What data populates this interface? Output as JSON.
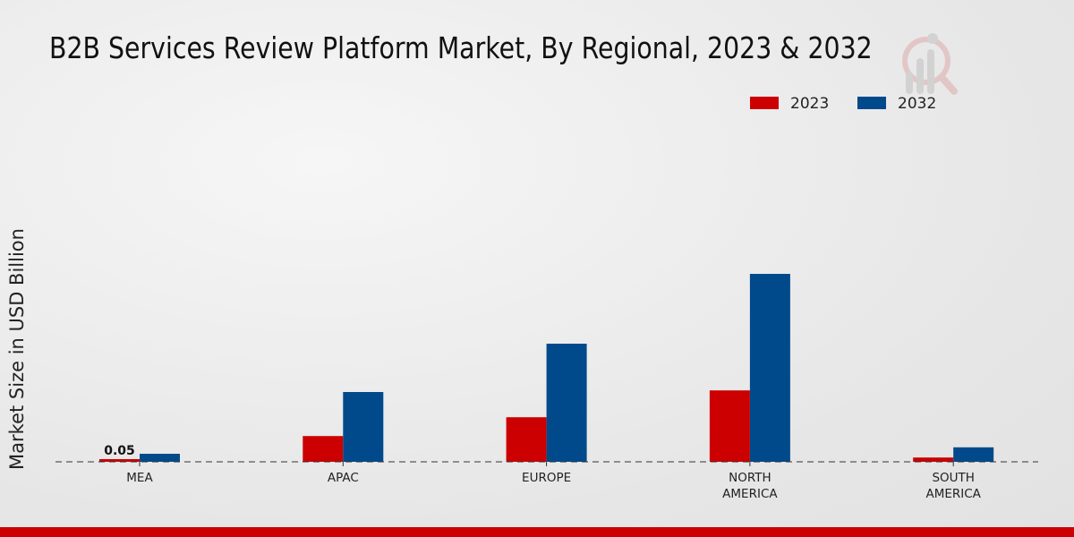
{
  "title": "B2B Services Review Platform Market, By Regional, 2023 & 2032",
  "chart_data": {
    "type": "bar",
    "title": "B2B Services Review Platform Market, By Regional, 2023 & 2032",
    "xlabel": "",
    "ylabel": "Market Size in USD Billion",
    "categories": [
      "MEA",
      "APAC",
      "EUROPE",
      "NORTH AMERICA",
      "SOUTH AMERICA"
    ],
    "category_lines": [
      [
        "MEA"
      ],
      [
        "APAC"
      ],
      [
        "EUROPE"
      ],
      [
        "NORTH",
        "AMERICA"
      ],
      [
        "SOUTH",
        "AMERICA"
      ]
    ],
    "series": [
      {
        "name": "2023",
        "color": "#cc0000",
        "values": [
          0.05,
          0.48,
          0.83,
          1.33,
          0.08
        ]
      },
      {
        "name": "2032",
        "color": "#004a8c",
        "values": [
          0.15,
          1.3,
          2.2,
          3.5,
          0.27
        ]
      }
    ],
    "data_labels": [
      {
        "series": 0,
        "index": 0,
        "text": "0.05"
      }
    ],
    "ylim": [
      0,
      4.5
    ],
    "grid": false,
    "legend_position": "top-right"
  }
}
